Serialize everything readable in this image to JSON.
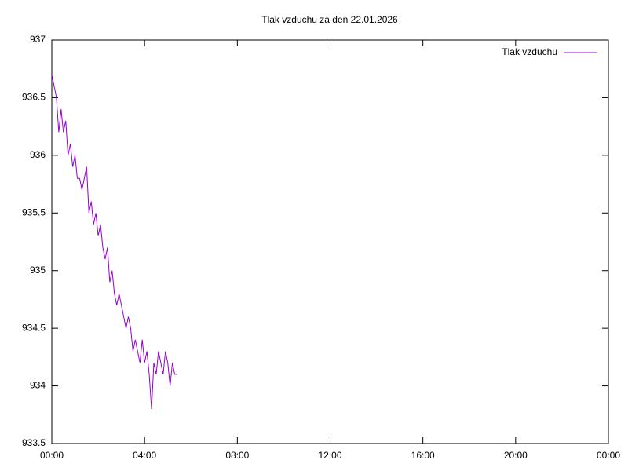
{
  "chart_data": {
    "type": "line",
    "title": "Tlak vzduchu za den 22.01.2026",
    "x": [
      0,
      0.1,
      0.2,
      0.3,
      0.4,
      0.5,
      0.6,
      0.7,
      0.8,
      0.9,
      1.0,
      1.1,
      1.2,
      1.3,
      1.4,
      1.5,
      1.6,
      1.7,
      1.8,
      1.9,
      2.0,
      2.1,
      2.2,
      2.3,
      2.4,
      2.5,
      2.6,
      2.7,
      2.8,
      2.9,
      3.0,
      3.1,
      3.2,
      3.3,
      3.4,
      3.5,
      3.6,
      3.7,
      3.8,
      3.9,
      4.0,
      4.1,
      4.2,
      4.3,
      4.4,
      4.5,
      4.6,
      4.7,
      4.8,
      4.9,
      5.0,
      5.1,
      5.2,
      5.3,
      5.4
    ],
    "series": [
      {
        "name": "Tlak vzduchu",
        "color": "#9400d3",
        "values": [
          936.7,
          936.6,
          936.5,
          936.2,
          936.4,
          936.2,
          936.3,
          936.0,
          936.1,
          935.9,
          936.0,
          935.8,
          935.8,
          935.7,
          935.8,
          935.9,
          935.5,
          935.6,
          935.4,
          935.5,
          935.3,
          935.4,
          935.2,
          935.1,
          935.2,
          934.9,
          935.0,
          934.8,
          934.7,
          934.8,
          934.7,
          934.6,
          934.5,
          934.6,
          934.5,
          934.3,
          934.4,
          934.3,
          934.2,
          934.4,
          934.2,
          934.3,
          934.1,
          933.8,
          934.2,
          934.1,
          934.3,
          934.2,
          934.1,
          934.3,
          934.2,
          934.0,
          934.2,
          934.1,
          934.1
        ]
      }
    ],
    "xlim": [
      0,
      24
    ],
    "xticks": [
      {
        "value": 0,
        "label": "00:00"
      },
      {
        "value": 4,
        "label": "04:00"
      },
      {
        "value": 8,
        "label": "08:00"
      },
      {
        "value": 12,
        "label": "12:00"
      },
      {
        "value": 16,
        "label": "16:00"
      },
      {
        "value": 20,
        "label": "20:00"
      },
      {
        "value": 24,
        "label": "00:00"
      }
    ],
    "ylim": [
      933.5,
      937
    ],
    "yticks": [
      933.5,
      934,
      934.5,
      935,
      935.5,
      936,
      936.5,
      937
    ],
    "legend": "top-right"
  }
}
